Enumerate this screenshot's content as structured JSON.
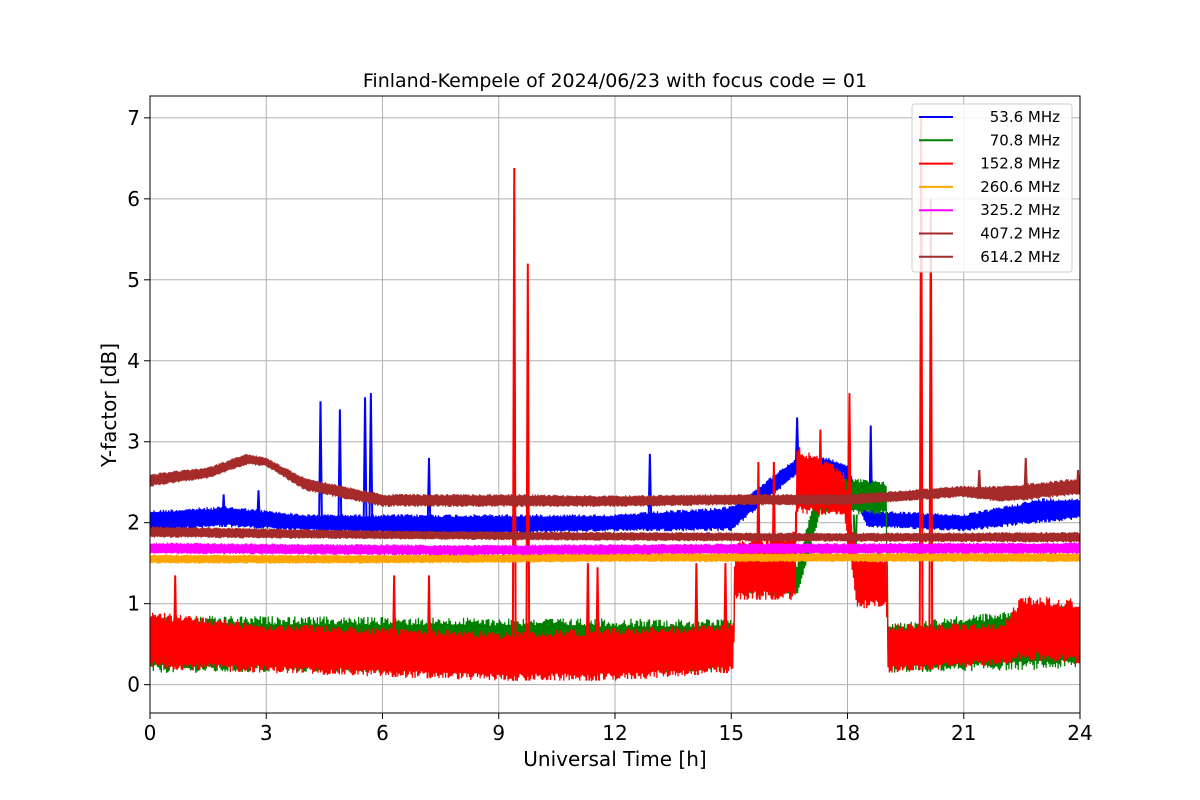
{
  "chart_data": {
    "type": "line",
    "title": "Finland-Kempele of 2024/06/23 with focus code = 01",
    "xlabel": "Universal Time [h]",
    "ylabel": "Y-factor [dB]",
    "xlim": [
      0,
      24
    ],
    "ylim": [
      -0.35,
      7.27
    ],
    "xticks": [
      0,
      3,
      6,
      9,
      12,
      15,
      18,
      21,
      24
    ],
    "yticks": [
      0,
      1,
      2,
      3,
      4,
      5,
      6,
      7
    ],
    "grid": true,
    "legend_position": "top-right",
    "series": [
      {
        "name": " 53.6 MHz",
        "color": "#0000ff",
        "band": [
          [
            0,
            1.9,
            2.15
          ],
          [
            2,
            1.95,
            2.2
          ],
          [
            4,
            1.9,
            2.1
          ],
          [
            8,
            1.85,
            2.1
          ],
          [
            12,
            1.9,
            2.1
          ],
          [
            15,
            1.9,
            2.2
          ],
          [
            16.7,
            2.6,
            2.8
          ],
          [
            17.5,
            2.6,
            2.8
          ],
          [
            18,
            2.5,
            2.7
          ],
          [
            18.5,
            1.95,
            2.15
          ],
          [
            21,
            1.9,
            2.1
          ],
          [
            23,
            2.0,
            2.3
          ],
          [
            24,
            2.05,
            2.3
          ]
        ],
        "spikes": [
          [
            1.9,
            2.35
          ],
          [
            2.8,
            2.4
          ],
          [
            4.4,
            3.5
          ],
          [
            4.9,
            3.4
          ],
          [
            5.55,
            3.55
          ],
          [
            5.7,
            3.6
          ],
          [
            7.2,
            2.8
          ],
          [
            12.9,
            2.85
          ],
          [
            16.7,
            3.3
          ],
          [
            18.6,
            3.2
          ]
        ]
      },
      {
        "name": " 70.8 MHz",
        "color": "#008000",
        "band": [
          [
            0,
            0.15,
            0.85
          ],
          [
            15.05,
            0.15,
            0.8
          ],
          [
            15.1,
            1.1,
            1.5
          ],
          [
            16.7,
            1.1,
            1.5
          ],
          [
            17.3,
            2.1,
            2.6
          ],
          [
            19,
            2.1,
            2.5
          ],
          [
            19.05,
            0.15,
            0.75
          ],
          [
            24,
            0.2,
            1.0
          ]
        ],
        "spikes": [
          [
            11.5,
            0.7
          ],
          [
            18.2,
            1.5
          ],
          [
            20.1,
            0.65
          ]
        ]
      },
      {
        "name": "152.8 MHz",
        "color": "#ff0000",
        "band": [
          [
            0,
            0.2,
            0.9
          ],
          [
            3,
            0.15,
            0.75
          ],
          [
            6,
            0.1,
            0.7
          ],
          [
            9,
            0.05,
            0.65
          ],
          [
            12,
            0.05,
            0.7
          ],
          [
            15.05,
            0.15,
            0.75
          ],
          [
            15.1,
            1.05,
            1.75
          ],
          [
            16.65,
            1.05,
            1.9
          ],
          [
            16.7,
            2.1,
            2.95
          ],
          [
            17.9,
            2.1,
            2.65
          ],
          [
            18.25,
            0.95,
            1.6
          ],
          [
            19,
            0.95,
            1.6
          ],
          [
            19.05,
            0.15,
            0.75
          ],
          [
            22,
            0.25,
            0.75
          ],
          [
            22.5,
            0.3,
            1.1
          ],
          [
            24,
            0.25,
            1.05
          ]
        ],
        "spikes": [
          [
            0.65,
            1.35
          ],
          [
            6.3,
            1.35
          ],
          [
            7.2,
            1.35
          ],
          [
            9.4,
            6.38
          ],
          [
            9.75,
            5.2
          ],
          [
            11.3,
            1.5
          ],
          [
            11.55,
            1.45
          ],
          [
            14.1,
            1.5
          ],
          [
            14.85,
            1.5
          ],
          [
            15.7,
            2.75
          ],
          [
            16.1,
            2.75
          ],
          [
            17.3,
            3.15
          ],
          [
            18.05,
            3.6
          ],
          [
            19.9,
            7.0
          ],
          [
            20.15,
            6.0
          ]
        ]
      },
      {
        "name": "260.6 MHz",
        "color": "#ffa500",
        "band": [
          [
            0,
            1.5,
            1.6
          ],
          [
            6,
            1.5,
            1.6
          ],
          [
            12,
            1.52,
            1.62
          ],
          [
            18,
            1.52,
            1.62
          ],
          [
            24,
            1.52,
            1.62
          ]
        ],
        "spikes": []
      },
      {
        "name": "325.2 MHz",
        "color": "#ff00ff",
        "band": [
          [
            0,
            1.62,
            1.75
          ],
          [
            8,
            1.6,
            1.72
          ],
          [
            16,
            1.62,
            1.74
          ],
          [
            24,
            1.62,
            1.75
          ]
        ],
        "spikes": []
      },
      {
        "name": "407.2 MHz",
        "color": "#a52a2a",
        "band": [
          [
            0,
            1.82,
            1.95
          ],
          [
            6,
            1.8,
            1.9
          ],
          [
            12,
            1.78,
            1.88
          ],
          [
            18,
            1.77,
            1.87
          ],
          [
            24,
            1.76,
            1.88
          ]
        ],
        "spikes": []
      },
      {
        "name": "614.2 MHz",
        "color": "#a52a2a",
        "band": [
          [
            0,
            2.45,
            2.6
          ],
          [
            1.5,
            2.55,
            2.68
          ],
          [
            2.5,
            2.72,
            2.85
          ],
          [
            3,
            2.7,
            2.8
          ],
          [
            4,
            2.4,
            2.55
          ],
          [
            5,
            2.3,
            2.45
          ],
          [
            6,
            2.2,
            2.35
          ],
          [
            9,
            2.2,
            2.35
          ],
          [
            12,
            2.2,
            2.33
          ],
          [
            15,
            2.22,
            2.35
          ],
          [
            18,
            2.22,
            2.35
          ],
          [
            21,
            2.32,
            2.45
          ],
          [
            22,
            2.25,
            2.45
          ],
          [
            24,
            2.35,
            2.55
          ]
        ],
        "spikes": [
          [
            21.4,
            2.65
          ],
          [
            22.6,
            2.8
          ],
          [
            23.95,
            2.65
          ]
        ]
      }
    ]
  }
}
